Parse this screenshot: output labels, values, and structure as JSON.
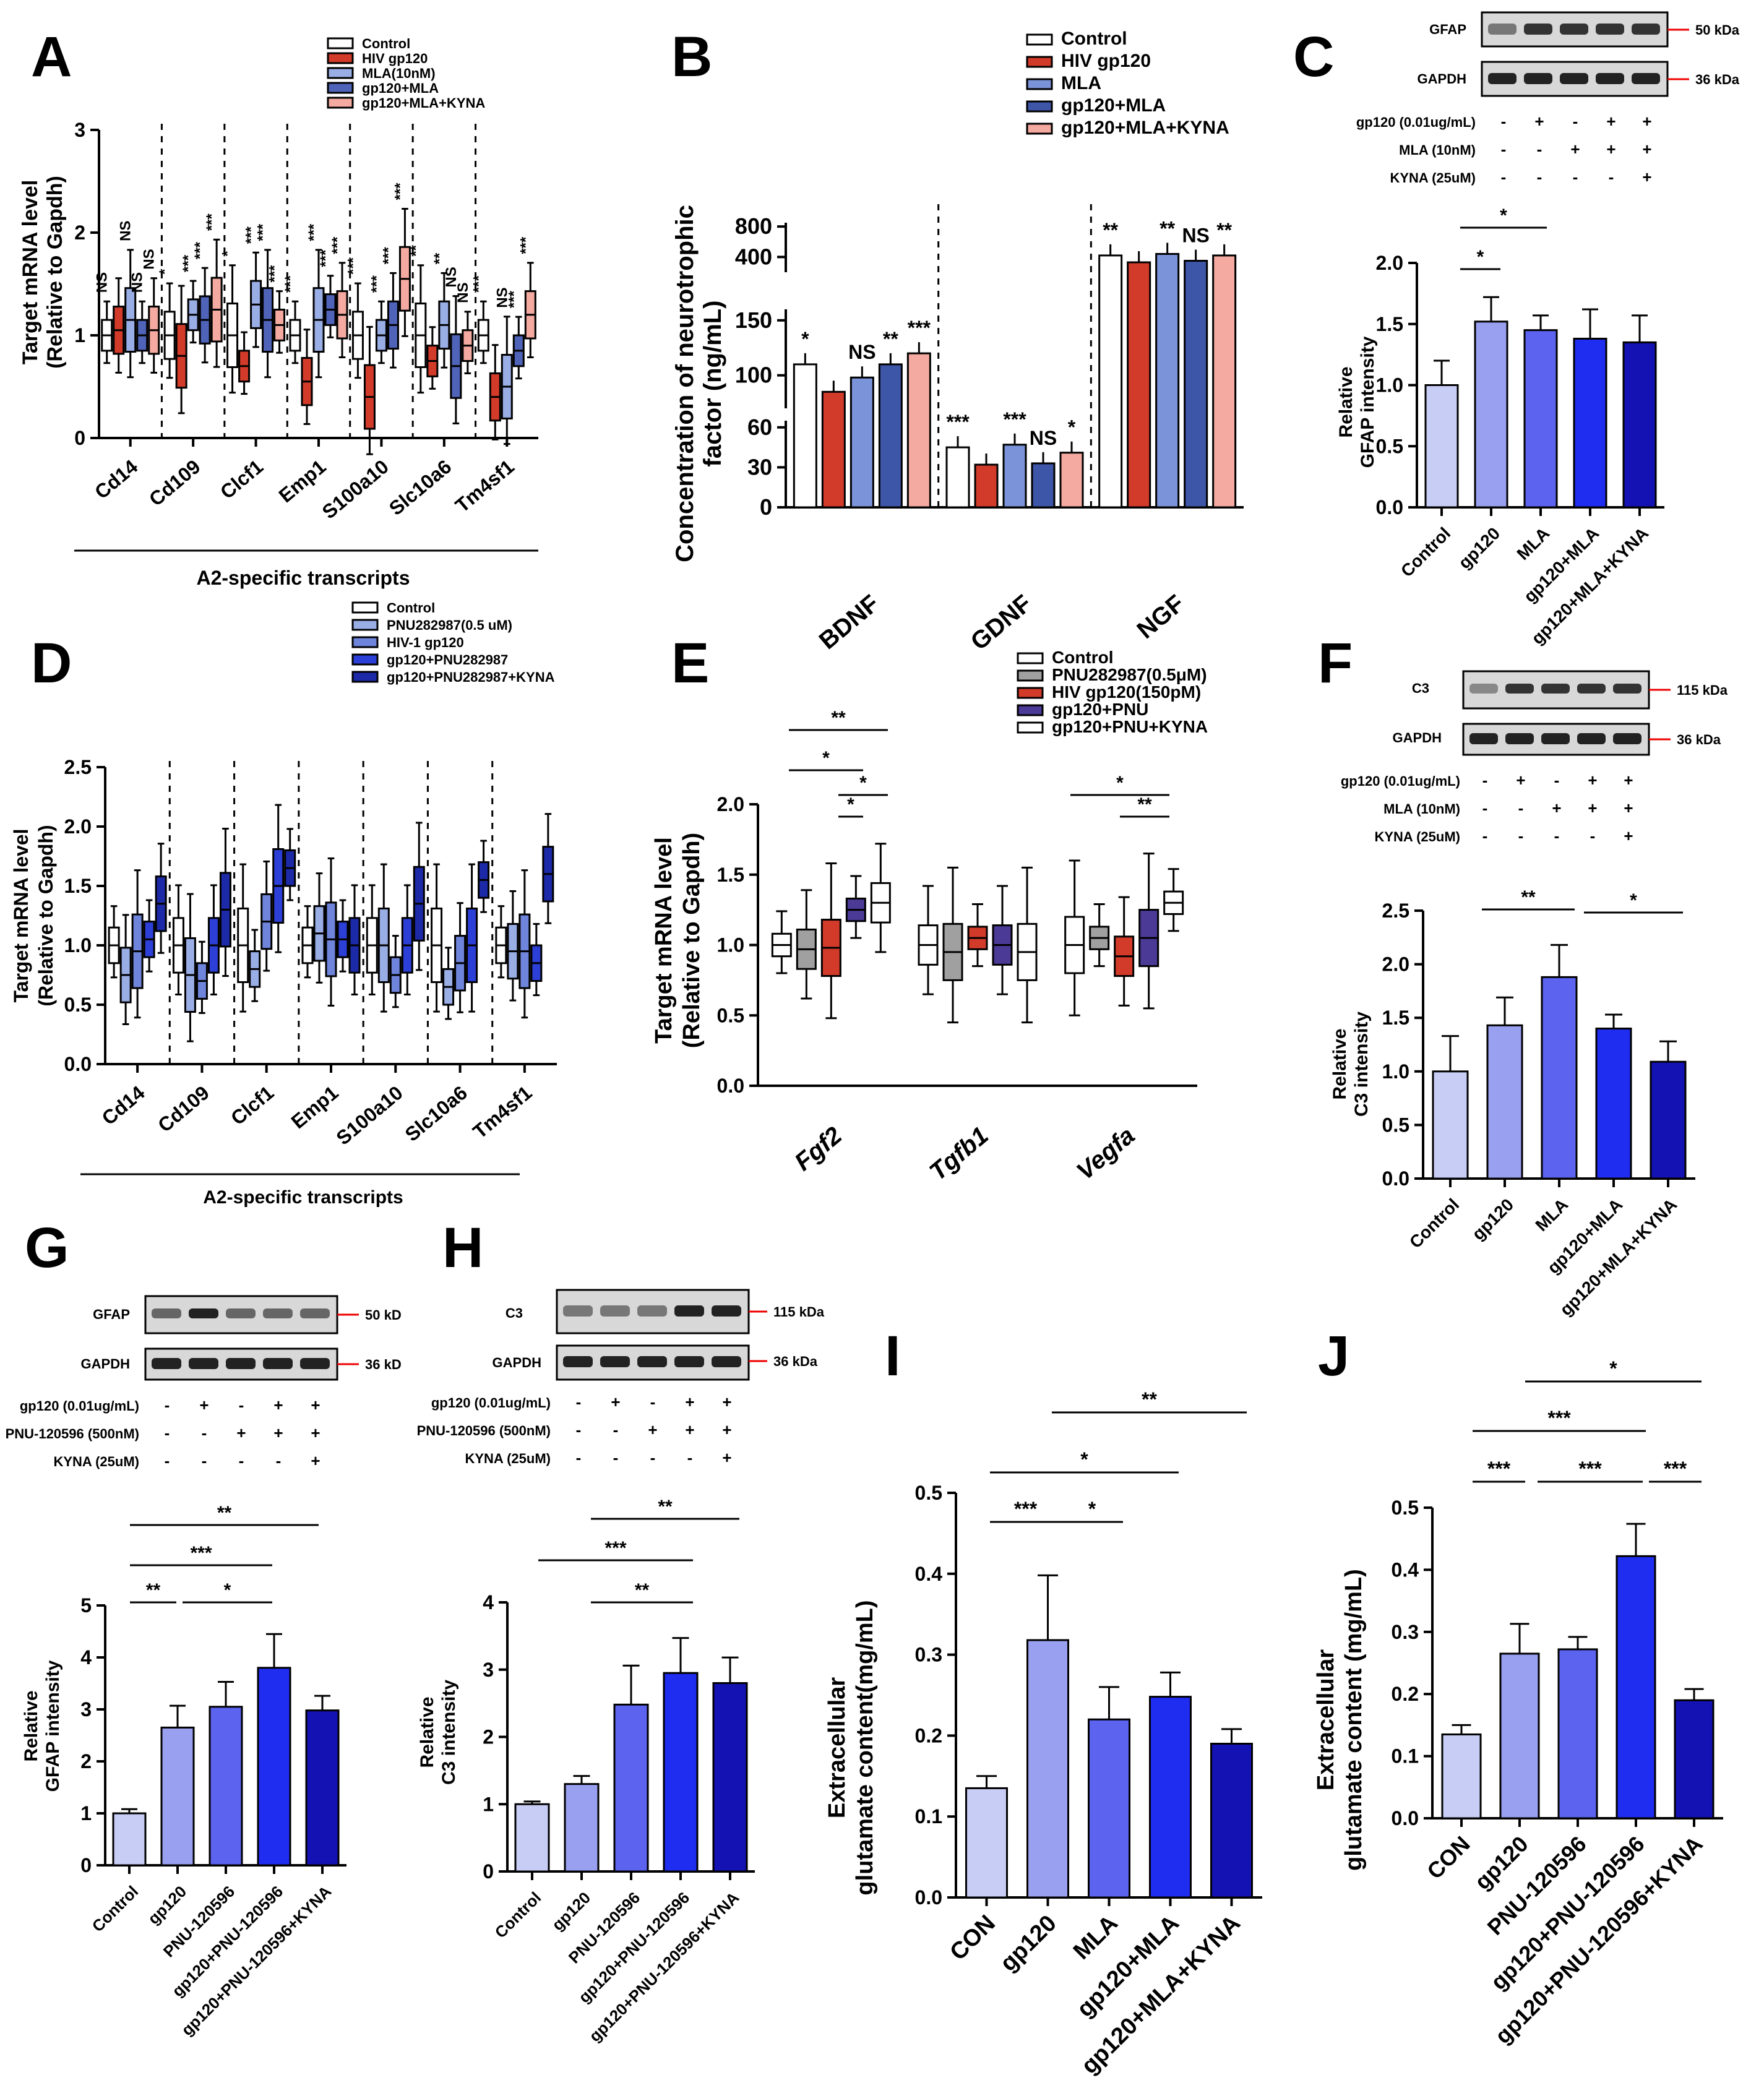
{
  "figure": {
    "letters": [
      "A",
      "B",
      "C",
      "D",
      "E",
      "F",
      "G",
      "H",
      "I",
      "J"
    ],
    "common": {
      "sig": {
        "ns": "NS",
        "s1": "*",
        "s2": "**",
        "s3": "***"
      }
    }
  },
  "panelA": {
    "legend": [
      "Control",
      "HIV gp120",
      "MLA(10nM)",
      "gp120+MLA",
      "gp120+MLA+KYNA"
    ],
    "colors": [
      "#ffffff",
      "#d23b2a",
      "#9aaee6",
      "#4f63b8",
      "#f4aaa0"
    ],
    "ylabel1": "Target mRNA level",
    "ylabel2": "(Relative to Gapdh)",
    "yticks": [
      "0",
      "1",
      "2",
      "3"
    ],
    "genes": [
      "Cd14",
      "Cd109",
      "Clcf1",
      "Emp1",
      "S100a10",
      "Slc10a6",
      "Tm4sf1"
    ],
    "group_label": "A2-specific transcripts"
  },
  "panelB": {
    "legend": [
      "Control",
      "HIV gp120",
      "MLA",
      "gp120+MLA",
      "gp120+MLA+KYNA"
    ],
    "colors": [
      "#ffffff",
      "#d23b2a",
      "#7b93d8",
      "#3e56a8",
      "#f4aaa0"
    ],
    "ylabel1": "Concentration of neurotrophic",
    "ylabel2": "factor (ng/mL)",
    "yticks_top": [
      "400",
      "800"
    ],
    "yticks_mid": [
      "100",
      "150"
    ],
    "yticks_low": [
      "0",
      "30",
      "60"
    ],
    "factors": [
      "BDNF",
      "GDNF",
      "NGF"
    ],
    "sigs": [
      [
        "*",
        "",
        "NS",
        "**",
        "***"
      ],
      [
        "***",
        "",
        "***",
        "NS",
        "*"
      ],
      [
        "**",
        "",
        "**",
        "NS",
        "**"
      ]
    ]
  },
  "panelC": {
    "blot_labels": [
      "GFAP",
      "GAPDH"
    ],
    "kda": [
      "50 kDa",
      "36 kDa"
    ],
    "treatments": [
      "gp120 (0.01ug/mL)",
      "MLA (10nM)",
      "KYNA (25uM)"
    ],
    "signs": [
      [
        "-",
        "+",
        "-",
        "+",
        "+"
      ],
      [
        "-",
        "-",
        "+",
        "+",
        "+"
      ],
      [
        "-",
        "-",
        "-",
        "-",
        "+"
      ]
    ],
    "ylabel1": "Relative",
    "ylabel2": "GFAP intensity",
    "yticks": [
      "0.0",
      "0.5",
      "1.0",
      "1.5",
      "2.0"
    ],
    "sig_top": "*",
    "sig_low": "*"
  },
  "panelD": {
    "legend": [
      "Control",
      "PNU282987(0.5 uM)",
      "HIV-1 gp120",
      "gp120+PNU282987",
      "gp120+PNU282987+KYNA"
    ],
    "colors": [
      "#ffffff",
      "#9aaee6",
      "#6f84db",
      "#2c3fd6",
      "#1c2aa8"
    ],
    "ylabel1": "Target mRNA level",
    "ylabel2": "(Relative to Gapdh)",
    "yticks": [
      "0.0",
      "0.5",
      "1.0",
      "1.5",
      "2.0",
      "2.5"
    ],
    "genes": [
      "Cd14",
      "Cd109",
      "Clcf1",
      "Emp1",
      "S100a10",
      "Slc10a6",
      "Tm4sf1"
    ],
    "group_label": "A2-specific transcripts"
  },
  "panelE": {
    "legend": [
      "Control",
      "PNU282987(0.5μM)",
      "HIV gp120(150pM)",
      "gp120+PNU",
      "gp120+PNU+KYNA"
    ],
    "colors": [
      "#ffffff",
      "#a0a0a0",
      "#d23b2a",
      "#4b3a96",
      "#ffffff"
    ],
    "ylabel1": "Target mRNA level",
    "ylabel2": "(Relative to Gapdh)",
    "yticks": [
      "0.0",
      "0.5",
      "1.0",
      "1.5",
      "2.0"
    ],
    "genes": [
      "Fgf2",
      "Tgfb1",
      "Vegfa"
    ],
    "sigs": [
      "**",
      "*",
      "*",
      "*",
      "*",
      "**"
    ]
  },
  "panelF": {
    "blot_labels": [
      "C3",
      "GAPDH"
    ],
    "kda": [
      "115 kDa",
      "36 kDa"
    ],
    "treatments": [
      "gp120 (0.01ug/mL)",
      "MLA (10nM)",
      "KYNA (25uM)"
    ],
    "signs": [
      [
        "-",
        "+",
        "-",
        "+",
        "+"
      ],
      [
        "-",
        "-",
        "+",
        "+",
        "+"
      ],
      [
        "-",
        "-",
        "-",
        "-",
        "+"
      ]
    ],
    "ylabel1": "Relative",
    "ylabel2": "C3 intensity",
    "yticks": [
      "0.0",
      "0.5",
      "1.0",
      "1.5",
      "2.0",
      "2.5"
    ],
    "sigs": [
      "**",
      "*"
    ]
  },
  "panelG": {
    "blot_labels": [
      "GFAP",
      "GAPDH"
    ],
    "kda": [
      "50 kD",
      "36 kD"
    ],
    "treatments": [
      "gp120 (0.01ug/mL)",
      "PNU-120596 (500nM)",
      "KYNA (25uM)"
    ],
    "signs": [
      [
        "-",
        "+",
        "-",
        "+",
        "+"
      ],
      [
        "-",
        "-",
        "+",
        "+",
        "+"
      ],
      [
        "-",
        "-",
        "-",
        "-",
        "+"
      ]
    ],
    "ylabel1": "Relative",
    "ylabel2": "GFAP intensity",
    "yticks": [
      "0",
      "1",
      "2",
      "3",
      "4",
      "5"
    ],
    "sigs": [
      "**",
      "***",
      "**",
      "*"
    ]
  },
  "panelH": {
    "blot_labels": [
      "C3",
      "GAPDH"
    ],
    "kda": [
      "115 kDa",
      "36 kDa"
    ],
    "treatments": [
      "gp120 (0.01ug/mL)",
      "PNU-120596 (500nM)",
      "KYNA (25uM)"
    ],
    "signs": [
      [
        "-",
        "+",
        "-",
        "+",
        "+"
      ],
      [
        "-",
        "-",
        "+",
        "+",
        "+"
      ],
      [
        "-",
        "-",
        "-",
        "-",
        "+"
      ]
    ],
    "ylabel1": "Relative",
    "ylabel2": "C3 intensity",
    "yticks": [
      "0",
      "1",
      "2",
      "3",
      "4"
    ],
    "sigs": [
      "**",
      "***",
      "**"
    ]
  },
  "panelI": {
    "ylabel1": "Extracellular",
    "ylabel2": "glutamate content(mg/mL)",
    "yticks": [
      "0.0",
      "0.1",
      "0.2",
      "0.3",
      "0.4",
      "0.5"
    ],
    "sigs": [
      "**",
      "*",
      "***",
      "*"
    ]
  },
  "panelJ": {
    "ylabel1": "Extracellular",
    "ylabel2": "glutamate content (mg/mL)",
    "yticks": [
      "0.0",
      "0.1",
      "0.2",
      "0.3",
      "0.4",
      "0.5"
    ],
    "sigs": [
      "*",
      "***",
      "***",
      "***",
      "***"
    ]
  },
  "chart_data": [
    {
      "panel": "A",
      "type": "box",
      "ylim": [
        0,
        3
      ],
      "categories": [
        "Cd14",
        "Cd109",
        "Clcf1",
        "Emp1",
        "S100a10",
        "Slc10a6",
        "Tm4sf1"
      ],
      "series": [
        {
          "name": "Control",
          "median": [
            1.0,
            1.0,
            1.0,
            1.0,
            1.0,
            1.0,
            1.0
          ]
        },
        {
          "name": "HIV gp120",
          "median": [
            1.05,
            0.8,
            0.7,
            0.55,
            0.4,
            0.75,
            0.4
          ]
        },
        {
          "name": "MLA(10nM)",
          "median": [
            1.15,
            1.2,
            1.3,
            1.15,
            1.0,
            1.1,
            0.5
          ]
        },
        {
          "name": "gp120+MLA",
          "median": [
            1.0,
            1.15,
            1.15,
            1.25,
            1.1,
            0.7,
            0.85
          ]
        },
        {
          "name": "gp120+MLA+KYNA",
          "median": [
            1.05,
            1.25,
            1.1,
            1.2,
            1.55,
            0.9,
            1.2
          ]
        }
      ],
      "significance": [
        [
          "NS",
          "",
          "NS",
          "NS",
          "NS"
        ],
        [
          "*",
          "",
          "***",
          "***",
          "***"
        ],
        [
          "*",
          "",
          "***",
          "***",
          "***"
        ],
        [
          "***",
          "",
          "***",
          "***",
          "***"
        ],
        [
          "***",
          "",
          "***",
          "***",
          "***"
        ],
        [
          "**",
          "",
          "**",
          "NS",
          "NS"
        ],
        [
          "***",
          "",
          "NS",
          "***",
          "***"
        ]
      ]
    },
    {
      "panel": "B",
      "type": "bar",
      "categories": [
        "BDNF",
        "GDNF",
        "NGF"
      ],
      "series": [
        {
          "name": "Control",
          "values": [
            110,
            45,
            420
          ]
        },
        {
          "name": "HIV gp120",
          "values": [
            85,
            32,
            330
          ]
        },
        {
          "name": "MLA",
          "values": [
            98,
            47,
            440
          ]
        },
        {
          "name": "gp120+MLA",
          "values": [
            110,
            33,
            350
          ]
        },
        {
          "name": "gp120+MLA+KYNA",
          "values": [
            120,
            41,
            420
          ]
        }
      ]
    },
    {
      "panel": "C",
      "type": "bar",
      "categories": [
        "Control",
        "gp120",
        "MLA",
        "gp120+MLA",
        "gp120+MLA+KYNA"
      ],
      "values": [
        1.0,
        1.52,
        1.45,
        1.38,
        1.35
      ],
      "errors": [
        0.2,
        0.2,
        0.12,
        0.24,
        0.22
      ],
      "ylim": [
        0,
        2.0
      ]
    },
    {
      "panel": "D",
      "type": "box",
      "ylim": [
        0,
        2.5
      ],
      "categories": [
        "Cd14",
        "Cd109",
        "Clcf1",
        "Emp1",
        "S100a10",
        "Slc10a6",
        "Tm4sf1"
      ],
      "series": [
        {
          "name": "Control",
          "median": [
            1.0,
            1.0,
            1.0,
            1.0,
            1.0,
            1.0,
            1.0
          ]
        },
        {
          "name": "PNU282987(0.5 uM)",
          "median": [
            0.75,
            0.75,
            0.8,
            1.1,
            1.0,
            0.65,
            0.95
          ]
        },
        {
          "name": "HIV-1 gp120",
          "median": [
            0.95,
            0.7,
            1.2,
            1.05,
            0.75,
            0.85,
            0.95
          ]
        },
        {
          "name": "gp120+PNU282987",
          "median": [
            1.05,
            1.0,
            1.5,
            1.05,
            1.0,
            1.0,
            0.85
          ]
        },
        {
          "name": "gp120+PNU282987+KYNA",
          "median": [
            1.35,
            1.3,
            1.65,
            1.0,
            1.35,
            1.55,
            1.6
          ]
        }
      ]
    },
    {
      "panel": "E",
      "type": "box",
      "ylim": [
        0,
        2.0
      ],
      "categories": [
        "Fgf2",
        "Tgfb1",
        "Vegfa"
      ],
      "series": [
        {
          "name": "Control",
          "median": [
            1.0,
            1.0,
            1.0
          ]
        },
        {
          "name": "PNU282987(0.5μM)",
          "median": [
            0.97,
            0.95,
            1.05
          ]
        },
        {
          "name": "HIV gp120(150pM)",
          "median": [
            0.98,
            1.05,
            0.92
          ]
        },
        {
          "name": "gp120+PNU",
          "median": [
            1.25,
            1.0,
            1.05
          ]
        },
        {
          "name": "gp120+PNU+KYNA",
          "median": [
            1.3,
            0.95,
            1.3
          ]
        }
      ]
    },
    {
      "panel": "F",
      "type": "bar",
      "categories": [
        "Control",
        "gp120",
        "MLA",
        "gp120+MLA",
        "gp120+MLA+KYNA"
      ],
      "values": [
        1.0,
        1.43,
        1.88,
        1.4,
        1.09
      ],
      "errors": [
        0.33,
        0.26,
        0.3,
        0.13,
        0.19
      ],
      "ylim": [
        0,
        2.5
      ]
    },
    {
      "panel": "G",
      "type": "bar",
      "categories": [
        "Control",
        "gp120",
        "PNU-120596",
        "gp120+PNU-120596",
        "gp120+PNU-120596+KYNA"
      ],
      "values": [
        1.0,
        2.65,
        3.05,
        3.8,
        2.98
      ],
      "errors": [
        0.08,
        0.42,
        0.48,
        0.65,
        0.28
      ],
      "ylim": [
        0,
        5
      ]
    },
    {
      "panel": "H",
      "type": "bar",
      "categories": [
        "Control",
        "gp120",
        "PNU-120596",
        "gp120+PNU-120596",
        "gp120+PNU-120596+KYNA"
      ],
      "values": [
        1.0,
        1.3,
        2.48,
        2.95,
        2.8
      ],
      "errors": [
        0.04,
        0.12,
        0.58,
        0.52,
        0.38
      ],
      "ylim": [
        0,
        4
      ]
    },
    {
      "panel": "I",
      "type": "bar",
      "categories": [
        "CON",
        "gp120",
        "MLA",
        "gp120+MLA",
        "gp120+MLA+KYNA"
      ],
      "values": [
        0.135,
        0.318,
        0.22,
        0.248,
        0.19
      ],
      "errors": [
        0.015,
        0.08,
        0.04,
        0.03,
        0.018
      ],
      "ylim": [
        0,
        0.5
      ]
    },
    {
      "panel": "J",
      "type": "bar",
      "categories": [
        "CON",
        "gp120",
        "PNU-120596",
        "gp120+PNU-120596",
        "gp120+PNU-120596+KYNA"
      ],
      "values": [
        0.135,
        0.265,
        0.272,
        0.422,
        0.19
      ],
      "errors": [
        0.015,
        0.048,
        0.02,
        0.052,
        0.018
      ],
      "ylim": [
        0,
        0.5
      ]
    }
  ]
}
